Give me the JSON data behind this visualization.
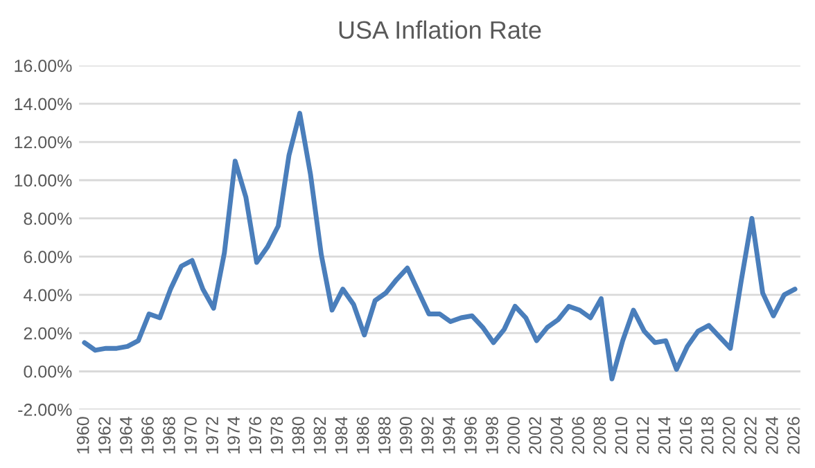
{
  "chart_data": {
    "type": "line",
    "title": "USA Inflation Rate",
    "categories": [
      "1960",
      null,
      "1962",
      null,
      "1964",
      null,
      "1966",
      null,
      "1968",
      null,
      "1970",
      null,
      "1972",
      null,
      "1974",
      null,
      "1976",
      null,
      "1978",
      null,
      "1980",
      null,
      "1982",
      null,
      "1984",
      null,
      "1986",
      null,
      "1988",
      null,
      "1990",
      null,
      "1992",
      null,
      "1994",
      null,
      "1996",
      null,
      "1998",
      null,
      "2000",
      null,
      "2002",
      null,
      "2004",
      null,
      "2006",
      null,
      "2008",
      null,
      "2010",
      null,
      "2012",
      null,
      "2014",
      null,
      "2016",
      null,
      "2018",
      null,
      "2020",
      null,
      "2022",
      null,
      "2024",
      null,
      "2026"
    ],
    "series": [
      {
        "color": "#4a7ebb",
        "values": [
          1.5,
          1.1,
          1.2,
          1.2,
          1.3,
          1.6,
          3.0,
          2.8,
          4.3,
          5.5,
          5.8,
          4.3,
          3.3,
          6.2,
          11.0,
          9.1,
          5.7,
          6.5,
          7.6,
          11.3,
          13.5,
          10.3,
          6.1,
          3.2,
          4.3,
          3.5,
          1.9,
          3.7,
          4.1,
          4.8,
          5.4,
          4.2,
          3.0,
          3.0,
          2.6,
          2.8,
          2.9,
          2.3,
          1.5,
          2.2,
          3.4,
          2.8,
          1.6,
          2.3,
          2.7,
          3.4,
          3.2,
          2.8,
          3.8,
          -0.4,
          1.6,
          3.2,
          2.1,
          1.5,
          1.6,
          0.1,
          1.3,
          2.1,
          2.4,
          1.8,
          1.2,
          4.7,
          8.0,
          4.1,
          2.9,
          4.0,
          4.3
        ]
      }
    ],
    "ylim": [
      -2,
      16
    ],
    "yticks": [
      {
        "value": -2,
        "label": "-2.00%"
      },
      {
        "value": 0,
        "label": "0.00%"
      },
      {
        "value": 2,
        "label": "2.00%"
      },
      {
        "value": 4,
        "label": "4.00%"
      },
      {
        "value": 6,
        "label": "6.00%"
      },
      {
        "value": 8,
        "label": "8.00%"
      },
      {
        "value": 10,
        "label": "10.00%"
      },
      {
        "value": 12,
        "label": "12.00%"
      },
      {
        "value": 14,
        "label": "14.00%"
      },
      {
        "value": 16,
        "label": "16.00%"
      }
    ],
    "grid": "y",
    "marker": "none",
    "line_style": "solid"
  }
}
